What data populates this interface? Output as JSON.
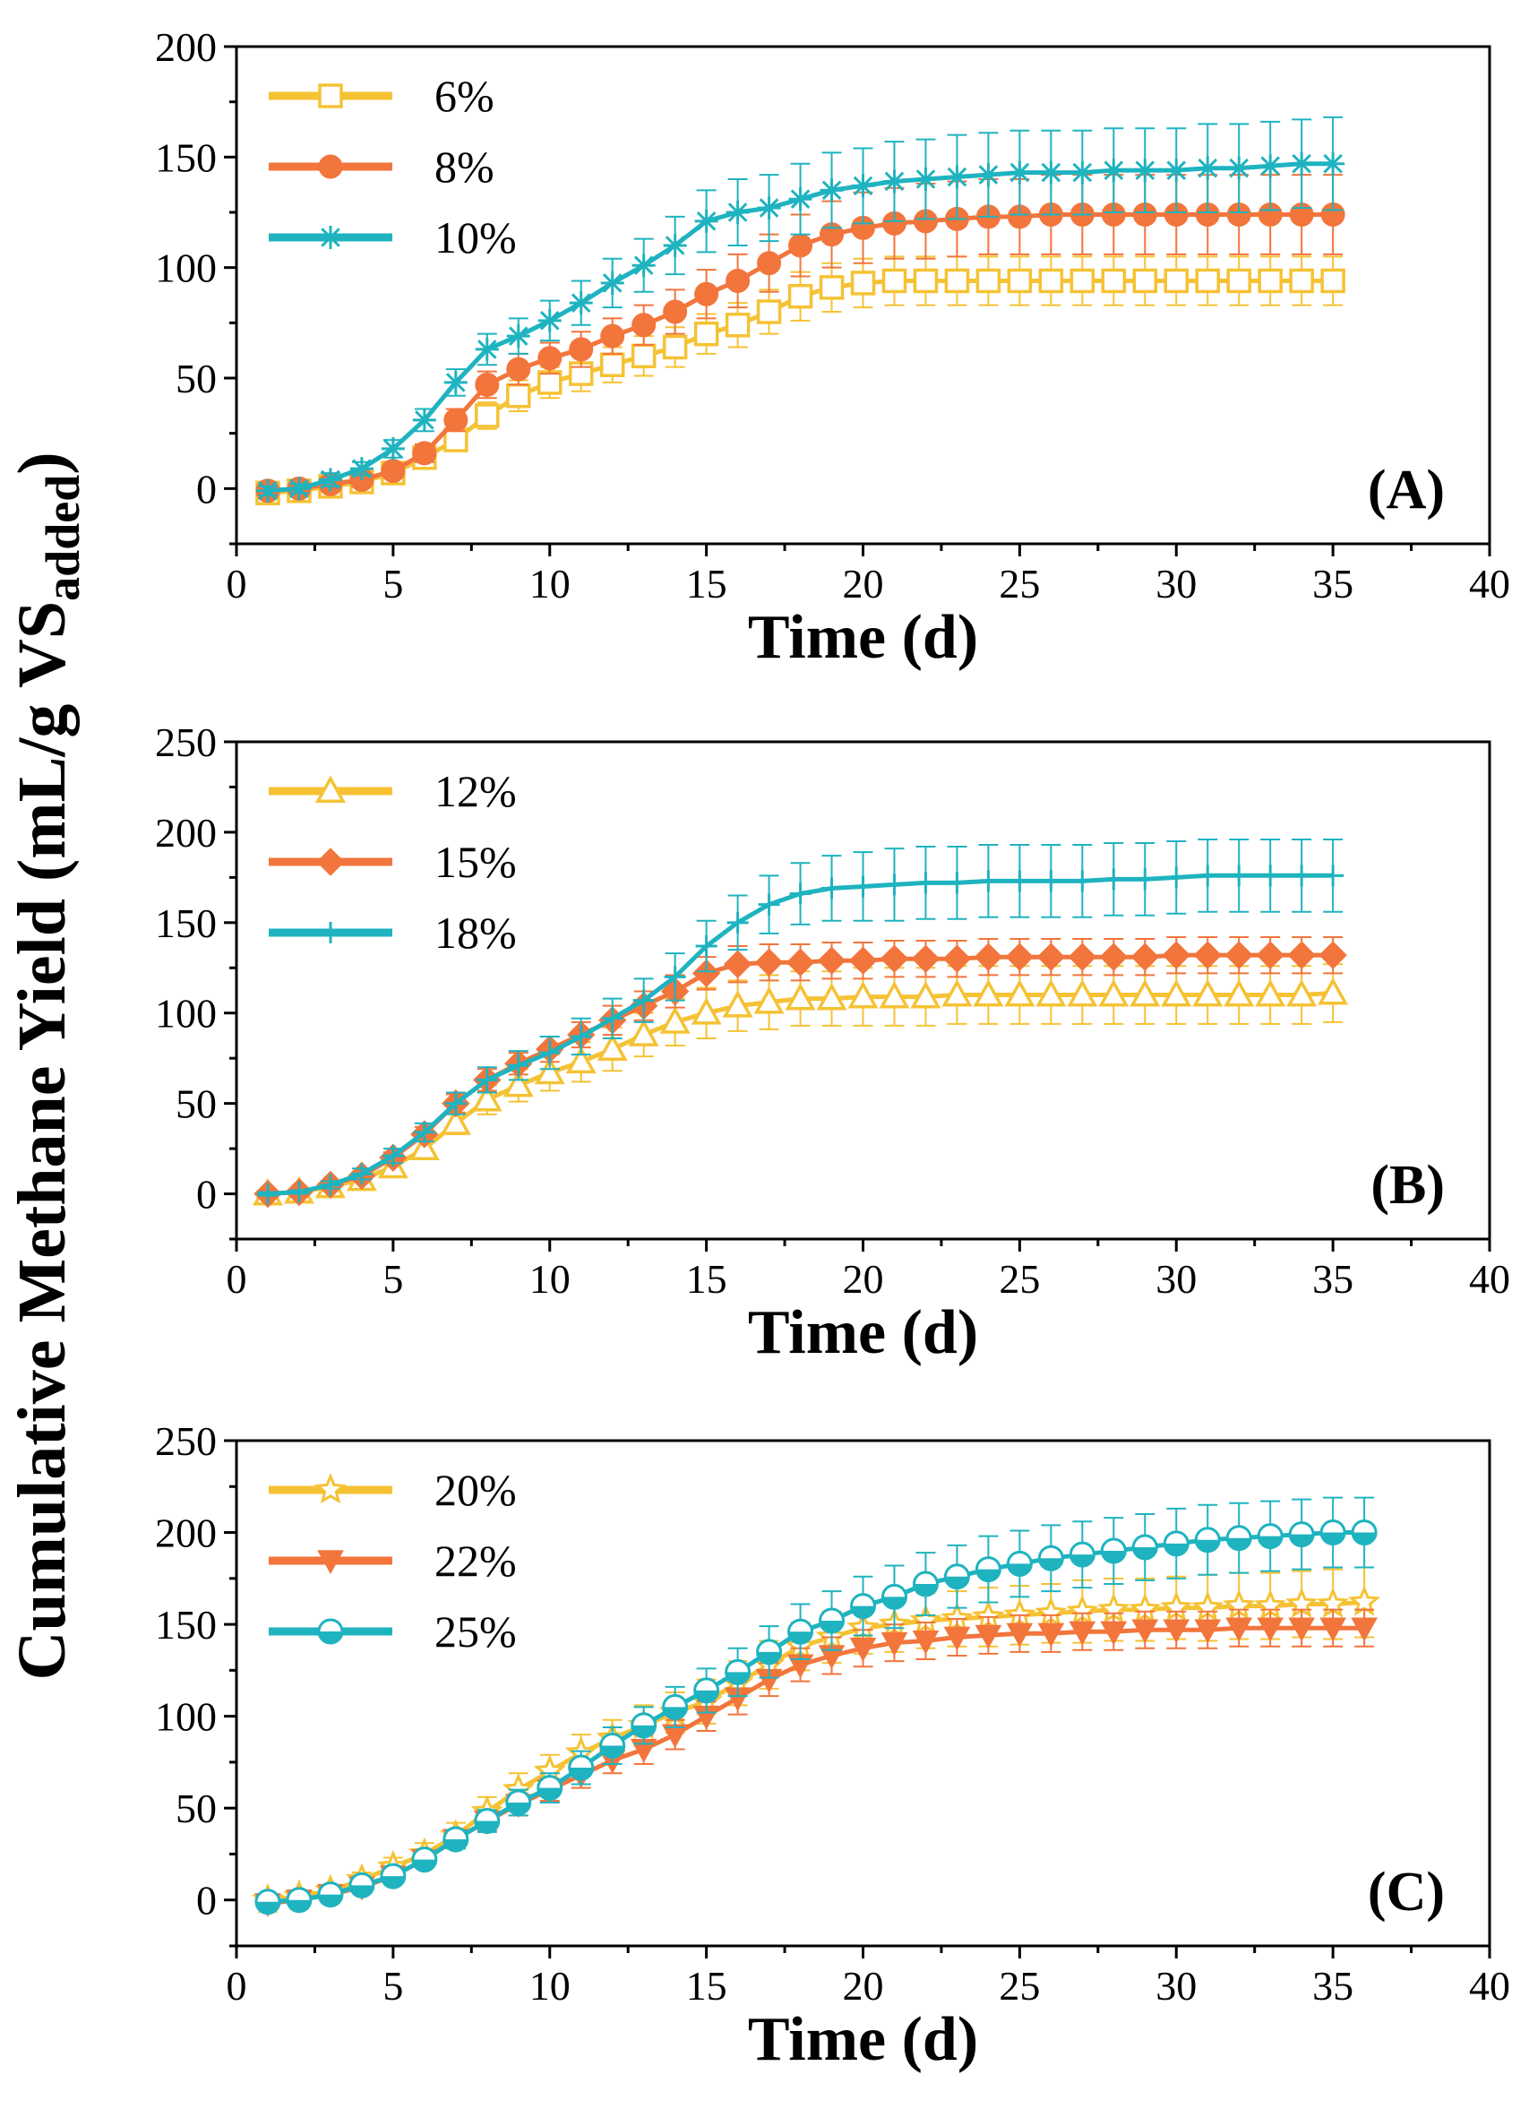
{
  "y_label_main": "Cumulative Methane Yield (mL/g VS",
  "y_label_sub": "added",
  "y_label_close": ")",
  "colors": {
    "yellow": "#F5C234",
    "orange": "#F2753C",
    "teal": "#1FB3C0",
    "axis": "#000000"
  },
  "chart_data": [
    {
      "panel": "(A)",
      "type": "line",
      "xlabel": "Time (d)",
      "xlim": [
        0,
        40
      ],
      "ylim": [
        -25,
        200
      ],
      "xticks": [
        0,
        5,
        10,
        15,
        20,
        25,
        30,
        35,
        40
      ],
      "yticks": [
        0,
        50,
        100,
        150,
        200
      ],
      "legend_position": "top-left",
      "x": [
        1,
        2,
        3,
        4,
        5,
        6,
        7,
        8,
        9,
        10,
        11,
        12,
        13,
        14,
        15,
        16,
        17,
        18,
        19,
        20,
        21,
        22,
        23,
        24,
        25,
        26,
        27,
        28,
        29,
        30,
        31,
        32,
        33,
        34,
        35
      ],
      "series": [
        {
          "name": "6%",
          "color": "yellow",
          "marker": "square-open",
          "values": [
            -2,
            -1,
            1,
            3,
            7,
            14,
            22,
            33,
            42,
            48,
            52,
            56,
            60,
            64,
            70,
            74,
            80,
            87,
            91,
            93,
            94,
            94,
            94,
            94,
            94,
            94,
            94,
            94,
            94,
            94,
            94,
            94,
            94,
            94,
            94
          ],
          "error": [
            1,
            1,
            2,
            2,
            3,
            4,
            5,
            6,
            7,
            7,
            8,
            8,
            9,
            9,
            9,
            10,
            10,
            11,
            11,
            11,
            11,
            11,
            11,
            11,
            11,
            11,
            11,
            11,
            11,
            11,
            11,
            11,
            11,
            11,
            11
          ]
        },
        {
          "name": "8%",
          "color": "orange",
          "marker": "circle-filled",
          "values": [
            -1,
            0,
            2,
            4,
            8,
            16,
            31,
            47,
            54,
            59,
            63,
            69,
            74,
            80,
            88,
            94,
            102,
            110,
            115,
            118,
            120,
            121,
            122,
            123,
            123,
            124,
            124,
            124,
            124,
            124,
            124,
            124,
            124,
            124,
            124
          ],
          "error": [
            1,
            1,
            2,
            2,
            3,
            4,
            5,
            6,
            7,
            7,
            8,
            8,
            9,
            10,
            11,
            12,
            13,
            14,
            15,
            16,
            16,
            17,
            17,
            17,
            17,
            18,
            18,
            18,
            18,
            18,
            18,
            18,
            18,
            18,
            18
          ]
        },
        {
          "name": "10%",
          "color": "teal",
          "marker": "star-asterisk",
          "values": [
            -1,
            0,
            4,
            9,
            18,
            31,
            48,
            63,
            69,
            76,
            84,
            93,
            101,
            110,
            121,
            125,
            127,
            131,
            135,
            137,
            139,
            140,
            141,
            142,
            143,
            143,
            143,
            144,
            144,
            144,
            145,
            145,
            146,
            147,
            147
          ],
          "error": [
            2,
            2,
            3,
            3,
            4,
            5,
            6,
            7,
            8,
            9,
            10,
            11,
            12,
            13,
            14,
            15,
            15,
            16,
            17,
            17,
            18,
            18,
            19,
            19,
            19,
            19,
            19,
            19,
            19,
            19,
            20,
            20,
            20,
            20,
            21
          ]
        }
      ]
    },
    {
      "panel": "(B)",
      "type": "line",
      "xlabel": "Time (d)",
      "xlim": [
        0,
        40
      ],
      "ylim": [
        -25,
        250
      ],
      "xticks": [
        0,
        5,
        10,
        15,
        20,
        25,
        30,
        35,
        40
      ],
      "yticks": [
        0,
        50,
        100,
        150,
        200,
        250
      ],
      "legend_position": "top-left",
      "x": [
        1,
        2,
        3,
        4,
        5,
        6,
        7,
        8,
        9,
        10,
        11,
        12,
        13,
        14,
        15,
        16,
        17,
        18,
        19,
        20,
        21,
        22,
        23,
        24,
        25,
        26,
        27,
        28,
        29,
        30,
        31,
        32,
        33,
        34,
        35
      ],
      "series": [
        {
          "name": "12%",
          "color": "yellow",
          "marker": "triangle-open",
          "values": [
            0,
            1,
            4,
            8,
            15,
            25,
            39,
            52,
            60,
            67,
            73,
            80,
            88,
            95,
            100,
            104,
            106,
            108,
            108,
            109,
            109,
            109,
            110,
            110,
            110,
            110,
            110,
            110,
            110,
            110,
            110,
            110,
            110,
            110,
            111
          ],
          "error": [
            2,
            2,
            3,
            3,
            4,
            5,
            6,
            8,
            9,
            10,
            11,
            12,
            12,
            13,
            14,
            14,
            15,
            15,
            15,
            16,
            16,
            16,
            16,
            16,
            16,
            16,
            16,
            16,
            16,
            16,
            16,
            16,
            16,
            16,
            16
          ]
        },
        {
          "name": "15%",
          "color": "orange",
          "marker": "diamond-filled",
          "values": [
            0,
            1,
            5,
            10,
            20,
            33,
            50,
            63,
            72,
            80,
            88,
            96,
            104,
            112,
            122,
            127,
            128,
            128,
            129,
            129,
            130,
            130,
            130,
            131,
            131,
            131,
            131,
            131,
            131,
            132,
            132,
            132,
            132,
            132,
            132
          ],
          "error": [
            1,
            1,
            2,
            2,
            3,
            4,
            5,
            6,
            6,
            7,
            7,
            8,
            8,
            9,
            9,
            10,
            10,
            10,
            10,
            10,
            10,
            10,
            10,
            10,
            10,
            10,
            10,
            10,
            10,
            10,
            10,
            10,
            10,
            10,
            10
          ]
        },
        {
          "name": "18%",
          "color": "teal",
          "marker": "plus",
          "values": [
            0,
            1,
            5,
            11,
            21,
            34,
            50,
            63,
            71,
            78,
            87,
            97,
            107,
            120,
            137,
            150,
            160,
            166,
            169,
            170,
            171,
            172,
            172,
            173,
            173,
            173,
            173,
            174,
            174,
            175,
            176,
            176,
            176,
            176,
            176
          ],
          "error": [
            1,
            1,
            2,
            3,
            4,
            5,
            6,
            7,
            8,
            9,
            10,
            11,
            12,
            13,
            14,
            15,
            16,
            17,
            18,
            19,
            20,
            20,
            20,
            20,
            20,
            20,
            20,
            20,
            20,
            20,
            20,
            20,
            20,
            20,
            20
          ]
        }
      ]
    },
    {
      "panel": "(C)",
      "type": "line",
      "xlabel": "Time (d)",
      "xlim": [
        0,
        40
      ],
      "ylim": [
        -25,
        250
      ],
      "xticks": [
        0,
        5,
        10,
        15,
        20,
        25,
        30,
        35,
        40
      ],
      "yticks": [
        0,
        50,
        100,
        150,
        200,
        250
      ],
      "legend_position": "top-left",
      "x": [
        1,
        2,
        3,
        4,
        5,
        6,
        7,
        8,
        9,
        10,
        11,
        12,
        13,
        14,
        15,
        16,
        17,
        18,
        19,
        20,
        21,
        22,
        23,
        24,
        25,
        26,
        27,
        28,
        29,
        30,
        31,
        32,
        33,
        34,
        35,
        36
      ],
      "series": [
        {
          "name": "20%",
          "color": "yellow",
          "marker": "star-open",
          "values": [
            0,
            2,
            5,
            11,
            18,
            25,
            35,
            48,
            60,
            70,
            80,
            88,
            95,
            102,
            108,
            118,
            128,
            138,
            143,
            148,
            150,
            152,
            153,
            154,
            155,
            156,
            157,
            158,
            158,
            159,
            159,
            160,
            160,
            161,
            161,
            162
          ],
          "error": [
            2,
            2,
            3,
            4,
            5,
            6,
            7,
            8,
            9,
            9,
            10,
            10,
            11,
            11,
            12,
            12,
            13,
            13,
            14,
            14,
            15,
            15,
            15,
            16,
            16,
            16,
            17,
            17,
            17,
            17,
            18,
            18,
            18,
            18,
            19,
            19
          ]
        },
        {
          "name": "22%",
          "color": "orange",
          "marker": "triangle-down-filled",
          "values": [
            -2,
            0,
            3,
            7,
            13,
            22,
            33,
            43,
            52,
            60,
            68,
            76,
            82,
            90,
            100,
            110,
            120,
            128,
            133,
            137,
            140,
            141,
            143,
            144,
            145,
            145,
            146,
            146,
            147,
            147,
            147,
            148,
            148,
            148,
            148,
            148
          ],
          "error": [
            1,
            1,
            2,
            2,
            3,
            4,
            5,
            5,
            6,
            6,
            7,
            7,
            8,
            8,
            8,
            9,
            9,
            9,
            10,
            10,
            10,
            10,
            10,
            10,
            10,
            10,
            10,
            10,
            10,
            10,
            10,
            10,
            10,
            10,
            10,
            10
          ]
        },
        {
          "name": "25%",
          "color": "teal",
          "marker": "circle-half",
          "values": [
            -1,
            0,
            3,
            8,
            13,
            22,
            33,
            43,
            53,
            61,
            72,
            84,
            95,
            105,
            114,
            124,
            135,
            146,
            152,
            160,
            165,
            172,
            176,
            180,
            183,
            186,
            188,
            190,
            192,
            194,
            196,
            197,
            198,
            199,
            200,
            200
          ],
          "error": [
            1,
            2,
            2,
            3,
            3,
            4,
            5,
            6,
            7,
            8,
            9,
            10,
            10,
            11,
            12,
            13,
            14,
            15,
            16,
            16,
            17,
            17,
            17,
            18,
            18,
            18,
            18,
            18,
            18,
            19,
            19,
            19,
            19,
            19,
            19,
            19
          ]
        }
      ]
    }
  ]
}
